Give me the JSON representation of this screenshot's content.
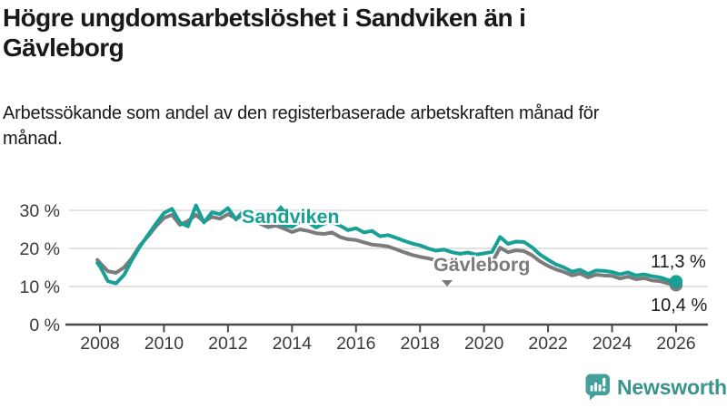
{
  "header": {
    "title": "Högre ungdomsarbetslöshet i Sandviken än i Gävleborg",
    "subtitle": "Arbetssökande som andel av den registerbaserade arbetskraften månad för månad."
  },
  "colors": {
    "sandviken": "#17a096",
    "gavleborg": "#7b7b7b",
    "grid": "#d9d9d9",
    "axis": "#4a4a4a",
    "axis_text": "#3a3a3a",
    "text": "#191919",
    "logo": "#44a09c",
    "logo_text": "#3a948c",
    "background": "#ffffff"
  },
  "annotations": {
    "sandviken_label": "Sandviken",
    "gavleborg_label": "Gävleborg",
    "sandviken_value": "11,3 %",
    "gavleborg_value": "10,4 %"
  },
  "icons": {
    "sandviken_pointer": "triangle-up",
    "gavleborg_pointer": "triangle-down",
    "logo": "bar-chart-speech-bubble"
  },
  "footer": {
    "brand": "Newsworthy"
  },
  "chart_data": {
    "type": "line",
    "title": "",
    "xlabel": "",
    "ylabel": "",
    "unit": "%",
    "grid": "horizontal",
    "legend_position": "inline-labels",
    "x_range": [
      2006.9,
      2027.0
    ],
    "ylim": [
      0,
      33
    ],
    "x_ticks": [
      2008,
      2010,
      2012,
      2014,
      2016,
      2018,
      2020,
      2022,
      2024,
      2026
    ],
    "y_ticks": [
      {
        "value": 0,
        "label": "0 %"
      },
      {
        "value": 10,
        "label": "10 %"
      },
      {
        "value": 20,
        "label": "20 %"
      },
      {
        "value": 30,
        "label": "30 %"
      }
    ],
    "x": [
      2007.92,
      2008,
      2008.25,
      2008.5,
      2008.75,
      2009,
      2009.25,
      2009.5,
      2009.75,
      2010,
      2010.25,
      2010.5,
      2010.75,
      2011,
      2011.25,
      2011.5,
      2011.75,
      2012,
      2012.25,
      2012.5,
      2012.75,
      2013,
      2013.25,
      2013.5,
      2013.75,
      2014,
      2014.25,
      2014.5,
      2014.75,
      2015,
      2015.25,
      2015.5,
      2015.75,
      2016,
      2016.25,
      2016.5,
      2016.75,
      2017,
      2017.25,
      2017.5,
      2017.75,
      2018,
      2018.25,
      2018.5,
      2018.75,
      2019,
      2019.25,
      2019.5,
      2019.75,
      2020,
      2020.25,
      2020.5,
      2020.75,
      2021,
      2021.25,
      2021.5,
      2021.75,
      2022,
      2022.25,
      2022.5,
      2022.75,
      2023,
      2023.25,
      2023.5,
      2023.75,
      2024,
      2024.25,
      2024.5,
      2024.75,
      2025,
      2025.25,
      2025.5,
      2025.75,
      2026
    ],
    "series": [
      {
        "name": "Sandviken",
        "color": "#17a096",
        "end_label": "11,3 %",
        "end_value": 11.3,
        "values": [
          16.2,
          15.3,
          11.4,
          10.8,
          13.0,
          17.0,
          20.5,
          23.5,
          26.5,
          29.3,
          30.4,
          26.8,
          25.8,
          31.3,
          26.8,
          29.5,
          29.0,
          30.6,
          27.6,
          30.0,
          28.8,
          28.0,
          26.4,
          26.9,
          26.0,
          25.7,
          27.1,
          26.9,
          25.5,
          26.5,
          26.9,
          26.0,
          24.8,
          25.3,
          24.2,
          24.6,
          23.2,
          23.5,
          22.8,
          22.0,
          21.3,
          20.8,
          20.0,
          19.4,
          19.7,
          19.0,
          18.6,
          18.9,
          18.4,
          18.7,
          19.1,
          23.0,
          21.2,
          21.8,
          21.7,
          20.3,
          18.4,
          17.0,
          15.8,
          15.0,
          13.9,
          14.4,
          13.3,
          14.2,
          14.1,
          13.8,
          13.2,
          13.7,
          12.9,
          13.2,
          12.7,
          12.4,
          11.7,
          11.3
        ]
      },
      {
        "name": "Gävleborg",
        "color": "#7b7b7b",
        "end_label": "10,4 %",
        "end_value": 10.4,
        "values": [
          17.0,
          16.2,
          14.0,
          13.6,
          15.0,
          17.5,
          20.8,
          23.2,
          25.8,
          28.0,
          28.8,
          26.2,
          27.2,
          28.8,
          27.0,
          28.3,
          27.8,
          29.0,
          27.9,
          28.6,
          27.5,
          26.5,
          25.6,
          26.0,
          25.2,
          24.3,
          25.0,
          24.6,
          24.0,
          23.8,
          24.2,
          23.0,
          22.4,
          22.2,
          21.6,
          21.0,
          20.8,
          20.5,
          19.8,
          19.0,
          18.3,
          17.8,
          17.4,
          16.9,
          17.1,
          16.4,
          15.9,
          16.1,
          15.5,
          15.8,
          16.3,
          20.2,
          19.0,
          19.5,
          19.3,
          18.2,
          16.6,
          15.4,
          14.5,
          13.8,
          12.9,
          13.4,
          12.4,
          13.1,
          12.9,
          12.8,
          12.1,
          12.6,
          11.9,
          12.2,
          11.6,
          11.4,
          10.8,
          10.4
        ]
      }
    ]
  }
}
